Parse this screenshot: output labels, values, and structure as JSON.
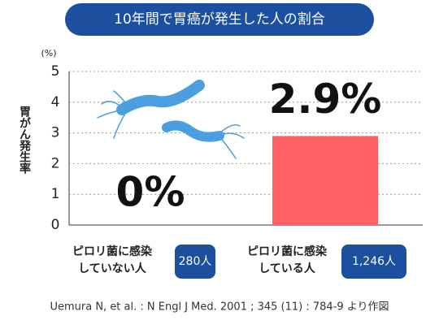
{
  "chart_data": {
    "type": "bar",
    "title": "10年間で胃癌が発生した人の割合",
    "y_label": "胃がん発生率",
    "unit": "(%)",
    "categories": [
      "ピロリ菌に感染\nしていない人",
      "ピロリ菌に感染\nしている人"
    ],
    "counts": [
      "280人",
      "1,246人"
    ],
    "values": [
      0,
      2.9
    ],
    "value_labels": [
      "0%",
      "2.9%"
    ],
    "color": "#ff6167",
    "ylim": [
      0,
      5
    ],
    "yticks": [
      0,
      1,
      2,
      3,
      4,
      5
    ],
    "grid": true,
    "source": "Uemura N, et al. : N Engl J Med. 2001 ; 345 (11) : 784-9 より作図"
  }
}
